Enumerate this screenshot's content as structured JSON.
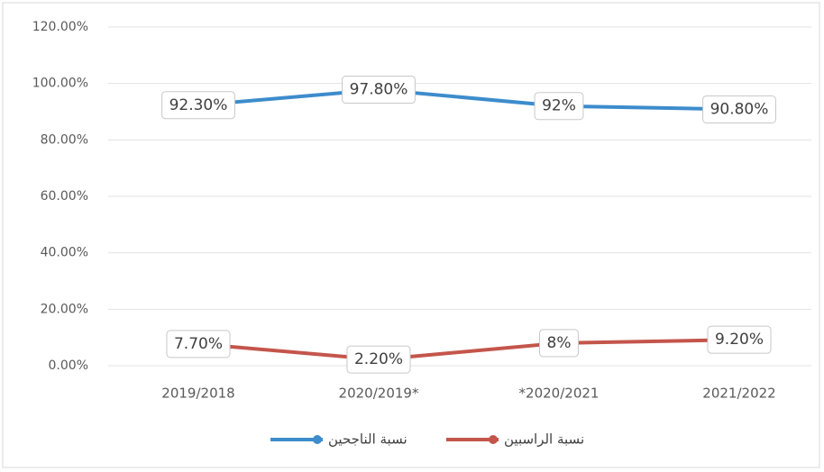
{
  "chart_data": {
    "type": "line",
    "categories": [
      "2019/2018",
      "2020/2019*",
      "*2020/2021",
      "2021/2022"
    ],
    "series": [
      {
        "name": "نسبة الناجحين",
        "color": "#3d8ccc",
        "values": [
          92.3,
          97.8,
          92,
          90.8
        ],
        "value_labels": [
          "92.30%",
          "97.80%",
          "92%",
          "90.80%"
        ]
      },
      {
        "name": "نسبة الراسبين",
        "color": "#c4554b",
        "values": [
          7.7,
          2.2,
          8,
          9.2
        ],
        "value_labels": [
          "7.70%",
          "2.20%",
          "8%",
          "9.20%"
        ]
      }
    ],
    "ylim": [
      0,
      120
    ],
    "yticks": [
      {
        "value": 0,
        "label": "0.00%"
      },
      {
        "value": 20,
        "label": "20.00%"
      },
      {
        "value": 40,
        "label": "40.00%"
      },
      {
        "value": 60,
        "label": "60.00%"
      },
      {
        "value": 80,
        "label": "80.00%"
      },
      {
        "value": 100,
        "label": "100.00%"
      },
      {
        "value": 120,
        "label": "120.00%"
      }
    ],
    "grid": true,
    "legend": "bottom"
  }
}
